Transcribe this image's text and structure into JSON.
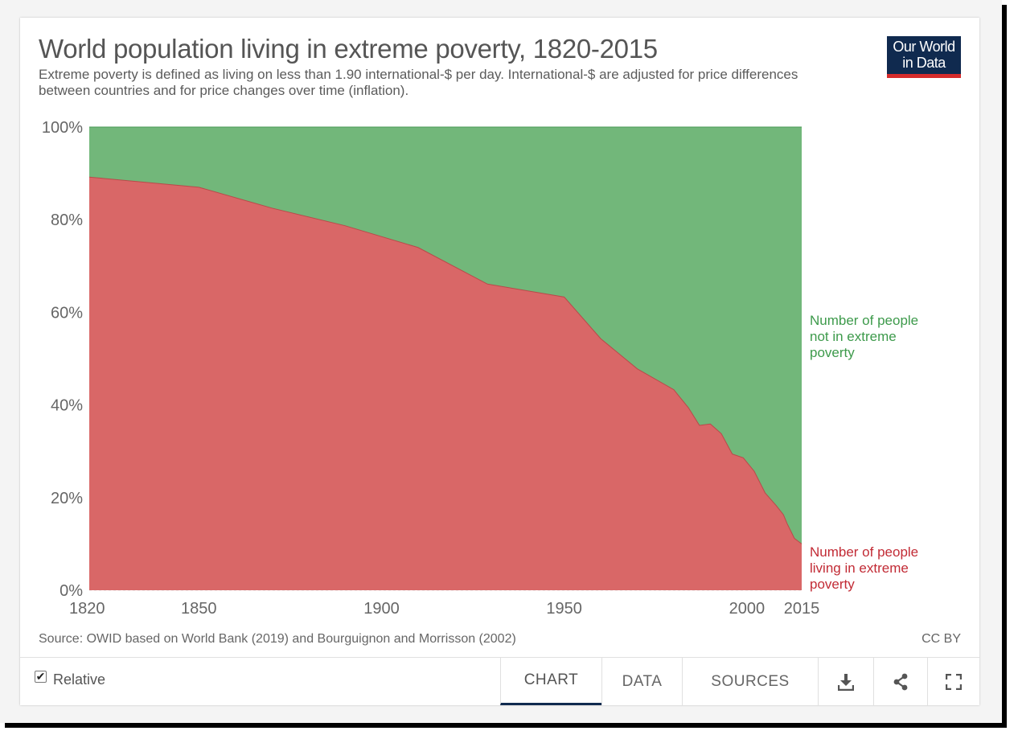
{
  "header": {
    "title": "World population living in extreme poverty, 1820-2015",
    "subtitle": "Extreme poverty is defined as living on less than 1.90 international-$ per day. International-$ are adjusted for price differences between countries and for price changes over time (inflation).",
    "logo_line1": "Our World",
    "logo_line2": "in Data"
  },
  "chart_data": {
    "type": "area",
    "stacked": true,
    "relative": true,
    "x": [
      1820,
      1850,
      1870,
      1890,
      1910,
      1929,
      1950,
      1960,
      1970,
      1980,
      1981,
      1984,
      1987,
      1990,
      1993,
      1996,
      1999,
      2002,
      2005,
      2008,
      2010,
      2011,
      2012,
      2013,
      2015
    ],
    "series": [
      {
        "name": "Number of people living in extreme poverty",
        "color": "#d96767",
        "label_color": "#c22b35",
        "values": [
          89.2,
          87.0,
          82.5,
          78.7,
          74.0,
          66.1,
          63.3,
          54.3,
          47.8,
          43.3,
          42.3,
          39.4,
          35.6,
          35.9,
          33.8,
          29.4,
          28.6,
          25.7,
          21.0,
          18.3,
          16.3,
          14.4,
          12.8,
          11.2,
          10.0
        ]
      },
      {
        "name": "Number of people not in extreme poverty",
        "color": "#72b77a",
        "label_color": "#3d9a4b",
        "values": [
          10.8,
          13.0,
          17.5,
          21.3,
          26.0,
          33.9,
          36.7,
          45.7,
          52.2,
          56.7,
          57.7,
          60.6,
          64.4,
          64.1,
          66.2,
          70.6,
          71.4,
          74.3,
          79.0,
          81.7,
          83.7,
          85.6,
          87.2,
          88.8,
          90.0
        ]
      }
    ],
    "label_lines": {
      "poor": [
        "Number of people",
        "living in extreme",
        "poverty"
      ],
      "not_poor": [
        "Number of people",
        "not in extreme",
        "poverty"
      ]
    },
    "xlim": [
      1820,
      2015
    ],
    "ylim": [
      0,
      100
    ],
    "x_ticks": [
      "1820",
      "1850",
      "1900",
      "1950",
      "2000",
      "2015"
    ],
    "y_ticks": [
      "0%",
      "20%",
      "40%",
      "60%",
      "80%",
      "100%"
    ]
  },
  "footer": {
    "source": "Source: OWID based on World Bank (2019) and Bourguignon and Morrisson (2002)",
    "license": "CC BY",
    "relative_label": "Relative",
    "relative_checked": true,
    "tabs": [
      "CHART",
      "DATA",
      "SOURCES"
    ],
    "active_tab": "CHART"
  }
}
